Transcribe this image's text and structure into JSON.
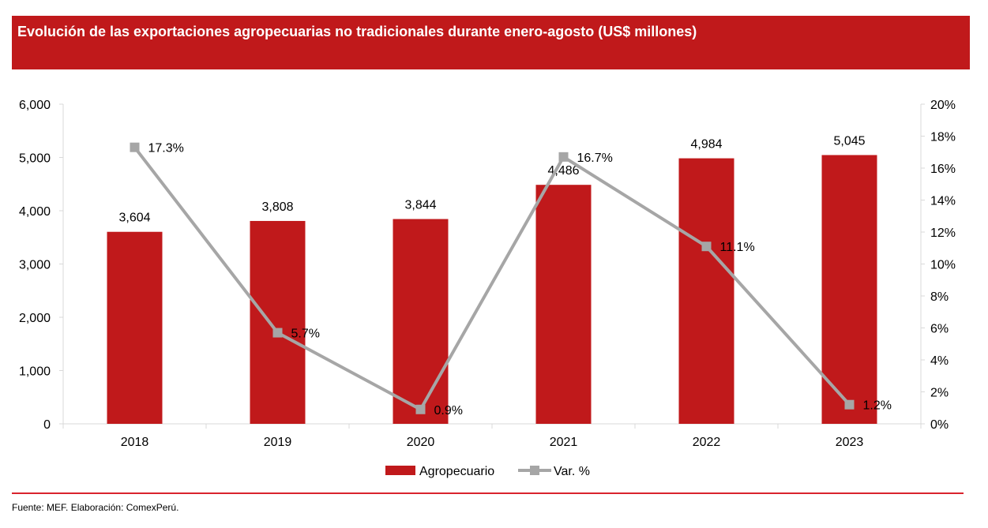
{
  "header": {
    "title": "Evolución de las exportaciones agropecuarias no tradicionales durante enero-agosto (US$ millones)"
  },
  "footer": {
    "source": "Fuente: MEF. Elaboración: ComexPerú."
  },
  "chart_data": {
    "type": "bar",
    "title": "Evolución de las exportaciones agropecuarias no tradicionales durante enero-agosto (US$ millones)",
    "categories": [
      "2018",
      "2019",
      "2020",
      "2021",
      "2022",
      "2023"
    ],
    "series": [
      {
        "name": "Agropecuario",
        "type": "bar",
        "axis": "left",
        "color": "#c0191b",
        "values": [
          3604,
          3808,
          3844,
          4486,
          4984,
          5045
        ],
        "labels": [
          "3,604",
          "3,808",
          "3,844",
          "4,486",
          "4,984",
          "5,045"
        ]
      },
      {
        "name": "Var. %",
        "type": "line",
        "axis": "right",
        "color": "#a6a6a6",
        "values": [
          17.3,
          5.7,
          0.9,
          16.7,
          11.1,
          1.2
        ],
        "labels": [
          "17.3%",
          "5.7%",
          "0.9%",
          "16.7%",
          "11.1%",
          "1.2%"
        ]
      }
    ],
    "y_left": {
      "range": [
        0,
        6000
      ],
      "ticks": [
        "0",
        "1,000",
        "2,000",
        "3,000",
        "4,000",
        "5,000",
        "6,000"
      ]
    },
    "y_right": {
      "range": [
        0,
        20
      ],
      "ticks": [
        "0%",
        "2%",
        "4%",
        "6%",
        "8%",
        "10%",
        "12%",
        "14%",
        "16%",
        "18%",
        "20%"
      ]
    },
    "legend": "bottom",
    "grid": false
  }
}
